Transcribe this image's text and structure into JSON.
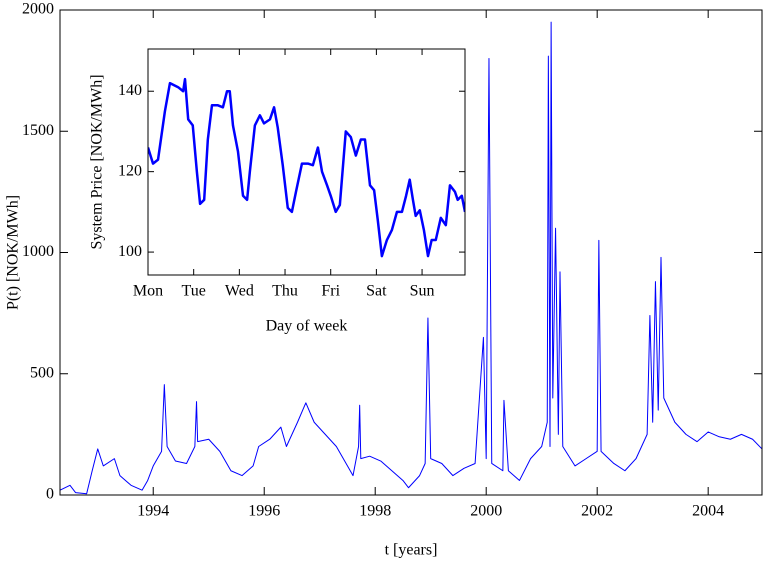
{
  "chart_data": [
    {
      "type": "line",
      "x_label": "t [years]",
      "y_label": "P(t) [NOK/MWh]",
      "xlim": [
        1992.32,
        2004.97
      ],
      "ylim": [
        0,
        2000
      ],
      "xticks": [
        1994,
        1996,
        1998,
        2000,
        2002,
        2004
      ],
      "yticks": [
        0,
        500,
        1000,
        1500,
        2000
      ],
      "series": [
        {
          "name": "P(t)",
          "color": "#0000ff",
          "x": [
            1992.32,
            1992.5,
            1992.6,
            1992.8,
            1992.9,
            1993.0,
            1993.1,
            1993.3,
            1993.4,
            1993.6,
            1993.8,
            1993.9,
            1994.0,
            1994.15,
            1994.2,
            1994.25,
            1994.4,
            1994.6,
            1994.75,
            1994.78,
            1994.8,
            1995.0,
            1995.2,
            1995.4,
            1995.6,
            1995.8,
            1995.9,
            1996.1,
            1996.3,
            1996.4,
            1996.6,
            1996.75,
            1996.9,
            1997.1,
            1997.3,
            1997.5,
            1997.6,
            1997.7,
            1997.72,
            1997.74,
            1997.9,
            1998.1,
            1998.3,
            1998.5,
            1998.6,
            1998.8,
            1998.9,
            1998.95,
            1999.0,
            1999.2,
            1999.4,
            1999.6,
            1999.8,
            1999.95,
            2000.0,
            2000.05,
            2000.1,
            2000.3,
            2000.32,
            2000.4,
            2000.6,
            2000.8,
            2001.0,
            2001.1,
            2001.12,
            2001.15,
            2001.17,
            2001.2,
            2001.25,
            2001.3,
            2001.33,
            2001.38,
            2001.6,
            2001.8,
            2002.0,
            2002.03,
            2002.07,
            2002.3,
            2002.5,
            2002.7,
            2002.9,
            2002.95,
            2003.0,
            2003.05,
            2003.1,
            2003.15,
            2003.2,
            2003.4,
            2003.6,
            2003.8,
            2004.0,
            2004.2,
            2004.4,
            2004.6,
            2004.8,
            2004.97
          ],
          "values": [
            20,
            40,
            10,
            5,
            100,
            190,
            120,
            150,
            80,
            40,
            20,
            60,
            120,
            180,
            455,
            200,
            140,
            130,
            200,
            385,
            220,
            230,
            180,
            100,
            80,
            120,
            200,
            230,
            280,
            200,
            300,
            380,
            300,
            250,
            200,
            120,
            80,
            200,
            370,
            150,
            160,
            140,
            100,
            60,
            30,
            80,
            130,
            730,
            150,
            130,
            80,
            110,
            130,
            650,
            150,
            1800,
            130,
            100,
            390,
            100,
            60,
            150,
            200,
            300,
            1810,
            200,
            1950,
            400,
            1100,
            250,
            920,
            200,
            120,
            150,
            180,
            1050,
            180,
            130,
            100,
            150,
            250,
            740,
            300,
            880,
            350,
            980,
            400,
            300,
            250,
            220,
            260,
            240,
            230,
            250,
            230,
            190
          ]
        }
      ]
    },
    {
      "type": "line",
      "x_label": "Day of week",
      "y_label": "System Price [NOK/MWh]",
      "xlim": [
        0,
        6.94
      ],
      "ylim": [
        94.3,
        150.5
      ],
      "xticks": [
        {
          "value": 0,
          "label": "Mon"
        },
        {
          "value": 1,
          "label": "Tue"
        },
        {
          "value": 2,
          "label": "Wed"
        },
        {
          "value": 3,
          "label": "Thu"
        },
        {
          "value": 4,
          "label": "Fri"
        },
        {
          "value": 5,
          "label": "Sat"
        },
        {
          "value": 6,
          "label": "Sun"
        }
      ],
      "yticks": [
        100,
        120,
        140
      ],
      "series": [
        {
          "name": "System Price",
          "color": "#0000ff",
          "x": [
            0,
            0.11,
            0.22,
            0.37,
            0.48,
            0.66,
            0.77,
            0.81,
            0.88,
            0.98,
            1.07,
            1.14,
            1.23,
            1.31,
            1.4,
            1.53,
            1.64,
            1.73,
            1.79,
            1.86,
            1.97,
            2.08,
            2.17,
            2.23,
            2.34,
            2.45,
            2.54,
            2.67,
            2.76,
            2.84,
            2.95,
            3.06,
            3.15,
            3.24,
            3.37,
            3.5,
            3.61,
            3.72,
            3.81,
            3.92,
            4.0,
            4.11,
            4.2,
            4.33,
            4.44,
            4.55,
            4.66,
            4.75,
            4.86,
            4.95,
            5.03,
            5.12,
            5.23,
            5.34,
            5.45,
            5.56,
            5.65,
            5.73,
            5.8,
            5.86,
            5.95,
            6.04,
            6.13,
            6.21,
            6.3,
            6.41,
            6.52,
            6.61,
            6.72,
            6.78,
            6.87,
            6.94
          ],
          "values": [
            126,
            122,
            123,
            135,
            142,
            141,
            140,
            143,
            133,
            131.5,
            120,
            112,
            113,
            128,
            136.5,
            136.5,
            136,
            140,
            140,
            131.5,
            125,
            114,
            113,
            120,
            131.5,
            134,
            132,
            133,
            136,
            131,
            121.6,
            111,
            110,
            115,
            122,
            122,
            121.6,
            126,
            120,
            116.6,
            114,
            110,
            111.7,
            130,
            128.6,
            124,
            128,
            128,
            116.6,
            115.4,
            108,
            99,
            103,
            105.5,
            110,
            110,
            114,
            118,
            113,
            109,
            110.4,
            105.5,
            99,
            103,
            103,
            108.5,
            106.7,
            116.6,
            115,
            113,
            114,
            110
          ]
        }
      ]
    }
  ]
}
